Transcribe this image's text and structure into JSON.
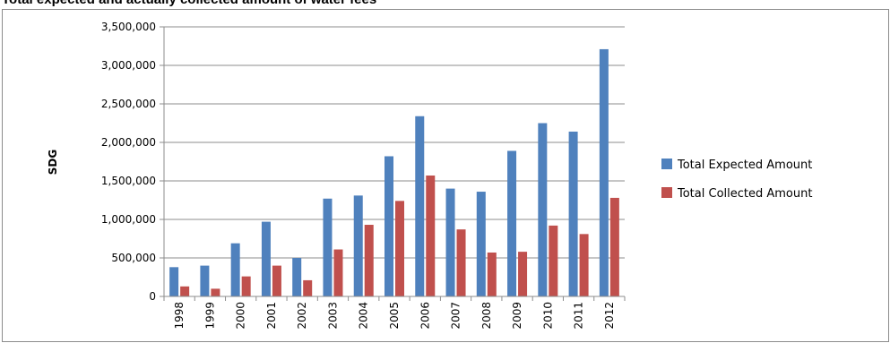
{
  "chart_data": {
    "type": "bar",
    "title": "Total expected and actually collected amount of water fees",
    "xlabel": "",
    "ylabel": "SDG",
    "ylim": [
      0,
      3500000
    ],
    "yticks": [
      0,
      500000,
      1000000,
      1500000,
      2000000,
      2500000,
      3000000,
      3500000
    ],
    "ytick_labels": [
      "0",
      "500,000",
      "1,000,000",
      "1,500,000",
      "2,000,000",
      "2,500,000",
      "3,000,000",
      "3,500,000"
    ],
    "grid": true,
    "legend_position": "right",
    "categories": [
      "1998",
      "1999",
      "2000",
      "2001",
      "2002",
      "2003",
      "2004",
      "2005",
      "2006",
      "2007",
      "2008",
      "2009",
      "2010",
      "2011",
      "2012"
    ],
    "series": [
      {
        "name": "Total Expected Amount",
        "color": "#4f81bd",
        "values": [
          380000,
          400000,
          690000,
          970000,
          500000,
          1270000,
          1310000,
          1820000,
          2340000,
          1400000,
          1360000,
          1890000,
          2250000,
          2140000,
          3210000
        ]
      },
      {
        "name": "Total Collected Amount",
        "color": "#c0504d",
        "values": [
          130000,
          100000,
          260000,
          400000,
          210000,
          610000,
          930000,
          1240000,
          1570000,
          870000,
          570000,
          580000,
          920000,
          810000,
          1280000
        ]
      }
    ]
  }
}
